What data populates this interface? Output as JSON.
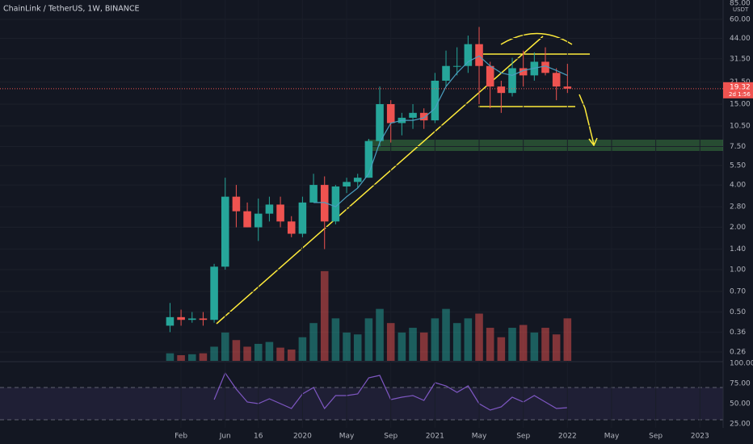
{
  "chart_data": {
    "type": "candlestick",
    "title": "ChainLink / TetherUS, 1W, BINANCE",
    "unit": "USDT",
    "countdown": "2d 1:56",
    "log_scale": true,
    "up_color": "#26a69a",
    "down_color": "#ef5350",
    "x": [
      0,
      1,
      2,
      3,
      4,
      5,
      6,
      7,
      8,
      9,
      10,
      11,
      12,
      13,
      14,
      15,
      16,
      17,
      18,
      19,
      20,
      21,
      22,
      23,
      24,
      25,
      26,
      27,
      28,
      29,
      30,
      31,
      32,
      33,
      34,
      35,
      36
    ],
    "xlim": [
      -15.4,
      50.1
    ],
    "xticks": [
      {
        "value": 1,
        "label": "Feb"
      },
      {
        "value": 5,
        "label": "Jun"
      },
      {
        "value": 8,
        "label": "16"
      },
      {
        "value": 12,
        "label": "2020"
      },
      {
        "value": 16,
        "label": "May"
      },
      {
        "value": 20,
        "label": "Sep"
      },
      {
        "value": 24,
        "label": "2021"
      },
      {
        "value": 28,
        "label": "May"
      },
      {
        "value": 32,
        "label": "Sep"
      },
      {
        "value": 36,
        "label": "2022"
      },
      {
        "value": 40,
        "label": "May"
      },
      {
        "value": 44,
        "label": "Sep"
      },
      {
        "value": 48,
        "label": "2023"
      }
    ],
    "ylim": [
      0.225,
      88
    ],
    "yticks": [
      {
        "value": 85,
        "label": "85.00"
      },
      {
        "value": 60,
        "label": "60.00"
      },
      {
        "value": 44,
        "label": "44.00"
      },
      {
        "value": 31.5,
        "label": "31.50"
      },
      {
        "value": 21.5,
        "label": "21.50"
      },
      {
        "value": 15,
        "label": "15.00"
      },
      {
        "value": 10.5,
        "label": "10.50"
      },
      {
        "value": 7.5,
        "label": "7.50"
      },
      {
        "value": 5.5,
        "label": "5.50"
      },
      {
        "value": 4,
        "label": "4.00"
      },
      {
        "value": 2.8,
        "label": "2.80"
      },
      {
        "value": 2,
        "label": "2.00"
      },
      {
        "value": 1.4,
        "label": "1.40"
      },
      {
        "value": 1,
        "label": "1.00"
      },
      {
        "value": 0.7,
        "label": "0.70"
      },
      {
        "value": 0.5,
        "label": "0.50"
      },
      {
        "value": 0.36,
        "label": "0.36"
      },
      {
        "value": 0.26,
        "label": "0.26"
      }
    ],
    "open": [
      0.4,
      0.46,
      0.44,
      0.45,
      0.44,
      1.05,
      3.3,
      2.6,
      2.0,
      2.5,
      2.9,
      2.2,
      1.8,
      3.0,
      4.0,
      2.2,
      3.9,
      4.2,
      4.5,
      8.2,
      15,
      11,
      12,
      13,
      11.5,
      22,
      28,
      28,
      40,
      28,
      20,
      18,
      27,
      24,
      30,
      25,
      20
    ],
    "high": [
      0.58,
      0.52,
      0.5,
      0.5,
      1.1,
      4.5,
      4.0,
      3.0,
      3.2,
      3.3,
      3.3,
      2.4,
      3.3,
      4.8,
      4.6,
      4.0,
      4.5,
      4.8,
      8.5,
      20,
      16,
      13,
      15,
      14,
      25,
      36,
      38,
      46,
      53,
      30,
      22,
      32,
      36,
      35,
      38,
      27,
      29
    ],
    "low": [
      0.36,
      0.4,
      0.42,
      0.4,
      0.42,
      1.0,
      2.0,
      2.0,
      1.6,
      2.2,
      2.0,
      1.7,
      1.7,
      3.0,
      1.4,
      2.1,
      3.5,
      3.8,
      4.5,
      7.5,
      8,
      9,
      10,
      10,
      11,
      20,
      24,
      25,
      15,
      14,
      13,
      17,
      20,
      22,
      24,
      16,
      18
    ],
    "close": [
      0.46,
      0.44,
      0.45,
      0.44,
      1.05,
      3.3,
      2.6,
      2.0,
      2.5,
      2.9,
      2.2,
      1.8,
      3.0,
      4.0,
      2.2,
      3.9,
      4.2,
      4.5,
      8.2,
      15,
      11,
      12,
      13,
      11.5,
      22,
      28,
      28,
      40,
      28,
      20,
      18,
      27,
      24,
      30,
      25,
      20,
      19.32
    ],
    "ma": {
      "color": "#4a9fc0",
      "values": [
        null,
        null,
        null,
        null,
        null,
        null,
        null,
        null,
        null,
        null,
        null,
        null,
        null,
        3.0,
        3.0,
        2.8,
        3.3,
        3.8,
        4.8,
        8,
        11,
        11.5,
        11.5,
        12,
        14,
        20,
        25,
        30,
        33,
        28,
        25,
        24,
        26,
        27,
        28,
        26,
        24
      ]
    },
    "volume": {
      "ylim": [
        0,
        100
      ],
      "values": [
        8,
        6,
        7,
        8,
        15,
        30,
        22,
        15,
        18,
        20,
        14,
        12,
        25,
        40,
        95,
        45,
        30,
        28,
        45,
        55,
        40,
        30,
        35,
        30,
        45,
        55,
        40,
        45,
        50,
        35,
        25,
        35,
        38,
        30,
        35,
        28,
        45
      ]
    },
    "rsi": {
      "color": "#7e57c2",
      "ylim": [
        21,
        103
      ],
      "band": [
        30,
        70
      ],
      "yticks": [
        {
          "value": 100,
          "label": "100.00"
        },
        {
          "value": 75,
          "label": "75.00"
        },
        {
          "value": 50,
          "label": "50.00"
        },
        {
          "value": 25,
          "label": "25.00"
        }
      ],
      "values": [
        null,
        null,
        null,
        null,
        55,
        88,
        68,
        52,
        50,
        56,
        50,
        44,
        62,
        70,
        44,
        60,
        60,
        62,
        82,
        85,
        55,
        58,
        60,
        54,
        76,
        72,
        64,
        72,
        50,
        42,
        46,
        58,
        52,
        60,
        52,
        44,
        45
      ]
    }
  }
}
